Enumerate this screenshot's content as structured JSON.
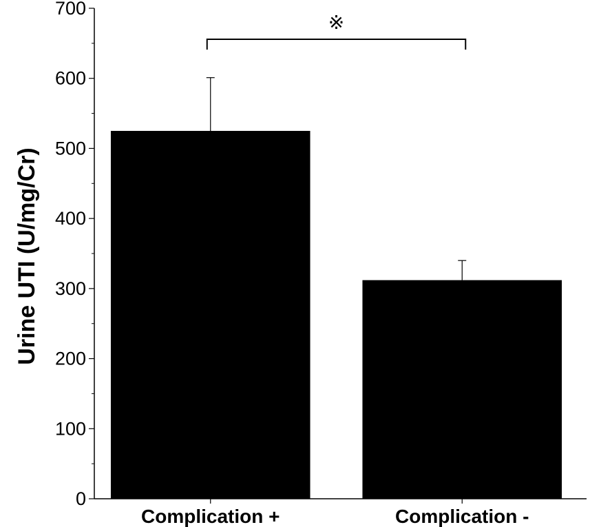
{
  "chart_data": {
    "type": "bar",
    "title": "",
    "xlabel": "",
    "ylabel": "Urine UTI (U/mg/Cr)",
    "categories": [
      "Complication +",
      "Complication -"
    ],
    "values": [
      525,
      312
    ],
    "error_upper": [
      601,
      340
    ],
    "ylim": [
      0,
      700
    ],
    "yticks": [
      "0",
      "100",
      "200",
      "300",
      "400",
      "500",
      "600",
      "700"
    ],
    "bar_color": "#000000",
    "grid": false,
    "legend": "none",
    "annotations": [
      {
        "type": "significance_bracket",
        "between": [
          "Complication +",
          "Complication -"
        ],
        "label": "※"
      }
    ]
  }
}
